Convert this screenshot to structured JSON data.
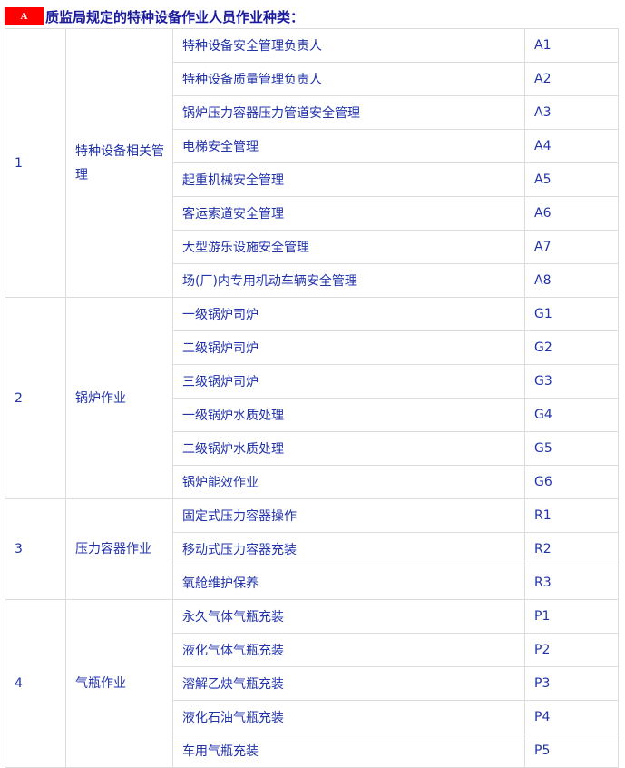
{
  "title": {
    "badge": "A",
    "text": "质监局规定的特种设备作业人员作业种类："
  },
  "groups": [
    {
      "num": "1",
      "category": "特种设备相关管理",
      "items": [
        {
          "name": "特种设备安全管理负责人",
          "code": "A1"
        },
        {
          "name": "特种设备质量管理负责人",
          "code": "A2"
        },
        {
          "name": "锅炉压力容器压力管道安全管理",
          "code": "A3"
        },
        {
          "name": "电梯安全管理",
          "code": "A4"
        },
        {
          "name": "起重机械安全管理",
          "code": "A5"
        },
        {
          "name": "客运索道安全管理",
          "code": "A6"
        },
        {
          "name": "大型游乐设施安全管理",
          "code": "A7"
        },
        {
          "name": "场(厂)内专用机动车辆安全管理",
          "code": "A8"
        }
      ]
    },
    {
      "num": "2",
      "category": "锅炉作业",
      "items": [
        {
          "name": "一级锅炉司炉",
          "code": "G1"
        },
        {
          "name": "二级锅炉司炉",
          "code": "G2"
        },
        {
          "name": "三级锅炉司炉",
          "code": "G3"
        },
        {
          "name": "一级锅炉水质处理",
          "code": "G4"
        },
        {
          "name": "二级锅炉水质处理",
          "code": "G5"
        },
        {
          "name": "锅炉能效作业",
          "code": "G6"
        }
      ]
    },
    {
      "num": "3",
      "category": "压力容器作业",
      "items": [
        {
          "name": "固定式压力容器操作",
          "code": "R1"
        },
        {
          "name": "移动式压力容器充装",
          "code": "R2"
        },
        {
          "name": "氧舱维护保养",
          "code": "R3"
        }
      ]
    },
    {
      "num": "4",
      "category": "气瓶作业",
      "items": [
        {
          "name": "永久气体气瓶充装",
          "code": "P1"
        },
        {
          "name": "液化气体气瓶充装",
          "code": "P2"
        },
        {
          "name": "溶解乙炔气瓶充装",
          "code": "P3"
        },
        {
          "name": "液化石油气瓶充装",
          "code": "P4"
        },
        {
          "name": "车用气瓶充装",
          "code": "P5"
        }
      ]
    }
  ]
}
